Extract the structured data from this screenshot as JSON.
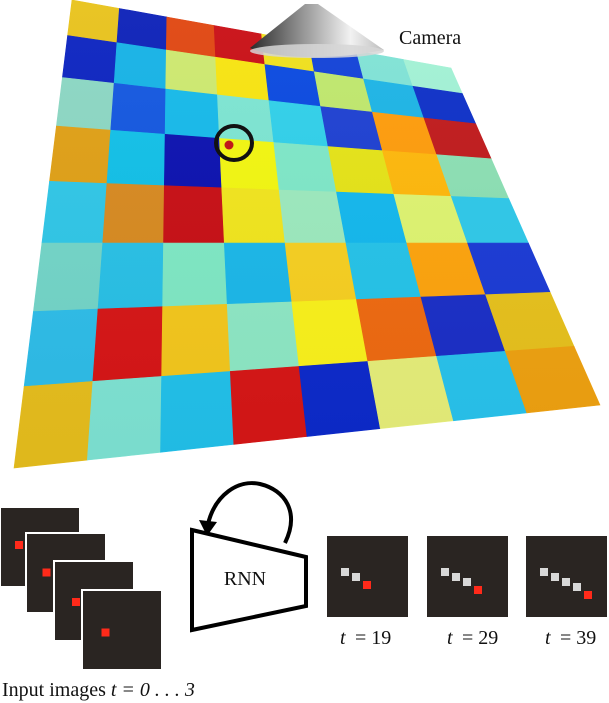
{
  "labels": {
    "camera": "Camera",
    "rnn": "RNN",
    "input_caption_prefix": "Input images ",
    "input_caption_math": "t = 0 . . . 3",
    "outputs": [
      {
        "t_label": "t",
        "eq": "= 19",
        "trail_points": 2
      },
      {
        "t_label": "t",
        "eq": "= 29",
        "trail_points": 3
      },
      {
        "t_label": "t",
        "eq": "= 39",
        "trail_points": 4
      }
    ]
  },
  "colors": {
    "frame_bg": "#2a2522",
    "ball": "#ff2a1a",
    "trail": "#d8d8d8",
    "ring": "#111111"
  },
  "grid": {
    "rows": 8,
    "cols": 8,
    "cells": [
      [
        "#e8c21a",
        "#0a1fb8",
        "#e0450f",
        "#c90d14",
        "#f0e01a",
        "#1040d8",
        "#7fe3d6",
        "#a2f2d5"
      ],
      [
        "#0a22c0",
        "#14b2e6",
        "#cde96e",
        "#f8e40e",
        "#0848e0",
        "#bfe86c",
        "#1bb4e6",
        "#0c2fc8"
      ],
      [
        "#8bd7c3",
        "#1256e0",
        "#14b9ea",
        "#7ce5d2",
        "#2fd0ea",
        "#1c3fd2",
        "#ff9c0a",
        "#c0191b"
      ],
      [
        "#e0a015",
        "#10c0e8",
        "#0a10b0",
        "#f3f70f",
        "#7ee8c8",
        "#e6e416",
        "#ffb80a",
        "#8ce0b4"
      ],
      [
        "#2fc7e8",
        "#d88a20",
        "#c80e14",
        "#f2e61c",
        "#9ceabe",
        "#12b8ee",
        "#dff570",
        "#2ec9ea"
      ],
      [
        "#73d6c9",
        "#28c1e7",
        "#7fe9c5",
        "#1ab8ea",
        "#f8d020",
        "#24c4ea",
        "#ffa40c",
        "#1a3ad6"
      ],
      [
        "#2ebeea",
        "#d81516",
        "#f5c81c",
        "#8ee9c6",
        "#fbf31a",
        "#f06a10",
        "#1a2ec8",
        "#e8c21c"
      ],
      [
        "#e8bf1d",
        "#7fe5d5",
        "#22c2ec",
        "#d81616",
        "#0c2acc",
        "#e8f07a",
        "#28c4ee",
        "#f0a210"
      ]
    ]
  }
}
